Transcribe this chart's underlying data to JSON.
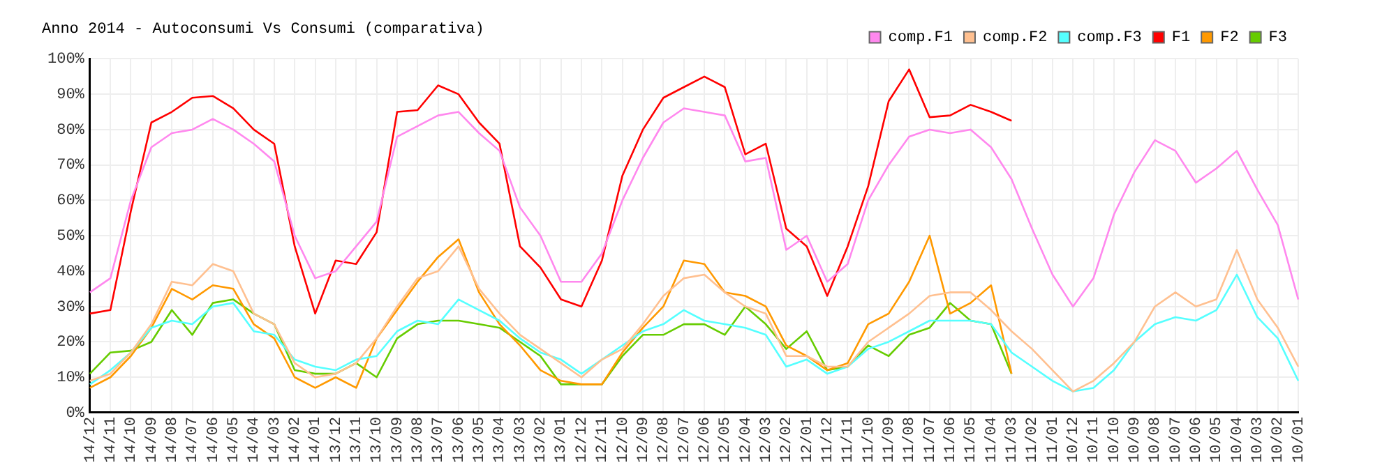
{
  "chart_data": {
    "type": "line",
    "title": "Anno 2014 - Autoconsumi Vs Consumi (comparativa)",
    "categories": [
      "14/12",
      "14/11",
      "14/10",
      "14/09",
      "14/08",
      "14/07",
      "14/06",
      "14/05",
      "14/04",
      "14/03",
      "14/02",
      "14/01",
      "13/12",
      "13/11",
      "13/10",
      "13/09",
      "13/08",
      "13/07",
      "13/06",
      "13/05",
      "13/04",
      "13/03",
      "13/02",
      "13/01",
      "12/12",
      "12/11",
      "12/10",
      "12/09",
      "12/08",
      "12/07",
      "12/06",
      "12/05",
      "12/04",
      "12/03",
      "12/02",
      "12/01",
      "11/12",
      "11/11",
      "11/10",
      "11/09",
      "11/08",
      "11/07",
      "11/06",
      "11/05",
      "11/04",
      "11/03",
      "11/02",
      "11/01",
      "10/12",
      "10/11",
      "10/10",
      "10/09",
      "10/08",
      "10/07",
      "10/06",
      "10/05",
      "10/04",
      "10/03",
      "10/02",
      "10/01"
    ],
    "series": [
      {
        "name": "comp.F1",
        "color": "#ff88ee",
        "values": [
          34,
          38,
          60,
          75,
          79,
          80,
          83,
          80,
          76,
          71,
          50,
          38,
          40,
          47,
          54,
          78,
          81,
          84,
          85,
          79,
          74,
          58,
          50,
          37,
          37,
          45,
          60,
          72,
          82,
          86,
          85,
          84,
          71,
          72,
          46,
          50,
          37,
          42,
          60,
          70,
          78,
          80,
          79,
          80,
          75,
          66,
          52,
          39,
          30,
          38,
          56,
          68,
          77,
          74,
          65,
          69,
          74,
          63,
          53,
          32
        ]
      },
      {
        "name": "comp.F2",
        "color": "#ffc090",
        "values": [
          9,
          11,
          17,
          25,
          37,
          36,
          42,
          40,
          28,
          25,
          14,
          10,
          11,
          14,
          21,
          30,
          38,
          40,
          47,
          35,
          28,
          22,
          18,
          14,
          10,
          15,
          18,
          25,
          33,
          38,
          39,
          34,
          30,
          28,
          16,
          16,
          13,
          13,
          20,
          24,
          28,
          33,
          34,
          34,
          29,
          23,
          18,
          12,
          6,
          9,
          14,
          20,
          30,
          34,
          30,
          32,
          46,
          32,
          24,
          13
        ]
      },
      {
        "name": "comp.F3",
        "color": "#55ffff",
        "values": [
          8,
          12,
          17,
          24,
          26,
          25,
          30,
          31,
          23,
          22,
          15,
          13,
          12,
          15,
          16,
          23,
          26,
          25,
          32,
          29,
          26,
          21,
          17,
          15,
          11,
          15,
          19,
          23,
          25,
          29,
          26,
          25,
          24,
          22,
          13,
          15,
          11,
          13,
          18,
          20,
          23,
          26,
          26,
          26,
          25,
          17,
          13,
          9,
          6,
          7,
          12,
          20,
          25,
          27,
          26,
          29,
          39,
          27,
          21,
          9
        ]
      },
      {
        "name": "F1",
        "color": "#ff0000",
        "values": [
          28,
          29,
          57,
          82,
          85,
          89,
          89.5,
          86,
          80,
          76,
          47,
          28,
          43,
          42,
          51,
          85,
          85.5,
          92.5,
          90,
          82,
          76,
          47,
          41,
          32,
          30,
          43,
          67,
          80,
          89,
          92,
          95,
          92,
          73,
          76,
          52,
          47,
          33,
          47,
          64,
          88,
          97,
          83.5,
          84,
          87,
          85,
          82.5,
          null,
          null,
          null,
          null,
          null,
          null,
          null,
          null,
          null,
          null,
          null,
          null,
          null,
          null
        ]
      },
      {
        "name": "F2",
        "color": "#ff9900",
        "values": [
          7,
          10,
          16,
          24,
          35,
          32,
          36,
          35,
          25,
          21,
          10,
          7,
          10,
          7,
          21,
          29,
          37,
          44,
          49,
          34,
          25,
          19,
          12,
          9,
          8,
          8,
          17,
          24,
          30,
          43,
          42,
          34,
          33,
          30,
          19,
          16,
          12,
          14,
          25,
          28,
          37,
          50,
          28,
          31,
          36,
          11,
          null,
          null,
          null,
          null,
          null,
          null,
          null,
          null,
          null,
          null,
          null,
          null,
          null,
          null
        ]
      },
      {
        "name": "F3",
        "color": "#66cc00",
        "values": [
          11,
          17,
          17.5,
          20,
          29,
          22,
          31,
          32,
          28,
          25,
          12,
          11,
          11,
          14,
          10,
          21,
          25,
          26,
          26,
          25,
          24,
          20,
          16,
          8,
          8,
          8,
          16,
          22,
          22,
          25,
          25,
          22,
          30,
          25,
          18,
          23,
          12,
          13,
          19,
          16,
          22,
          24,
          31,
          26,
          25,
          11,
          null,
          null,
          null,
          null,
          null,
          null,
          null,
          null,
          null,
          null,
          null,
          null,
          null,
          null
        ]
      }
    ],
    "ylim": [
      0,
      100
    ],
    "yticks": [
      {
        "value": 0,
        "label": "0%"
      },
      {
        "value": 10,
        "label": "10%"
      },
      {
        "value": 20,
        "label": "20%"
      },
      {
        "value": 30,
        "label": "30%"
      },
      {
        "value": 40,
        "label": "40%"
      },
      {
        "value": 50,
        "label": "50%"
      },
      {
        "value": 60,
        "label": "60%"
      },
      {
        "value": 70,
        "label": "70%"
      },
      {
        "value": 80,
        "label": "80%"
      },
      {
        "value": 90,
        "label": "90%"
      },
      {
        "value": 100,
        "label": "100%"
      }
    ],
    "grid": true,
    "legend": "top right",
    "marker": "none",
    "line_style": "solid"
  }
}
